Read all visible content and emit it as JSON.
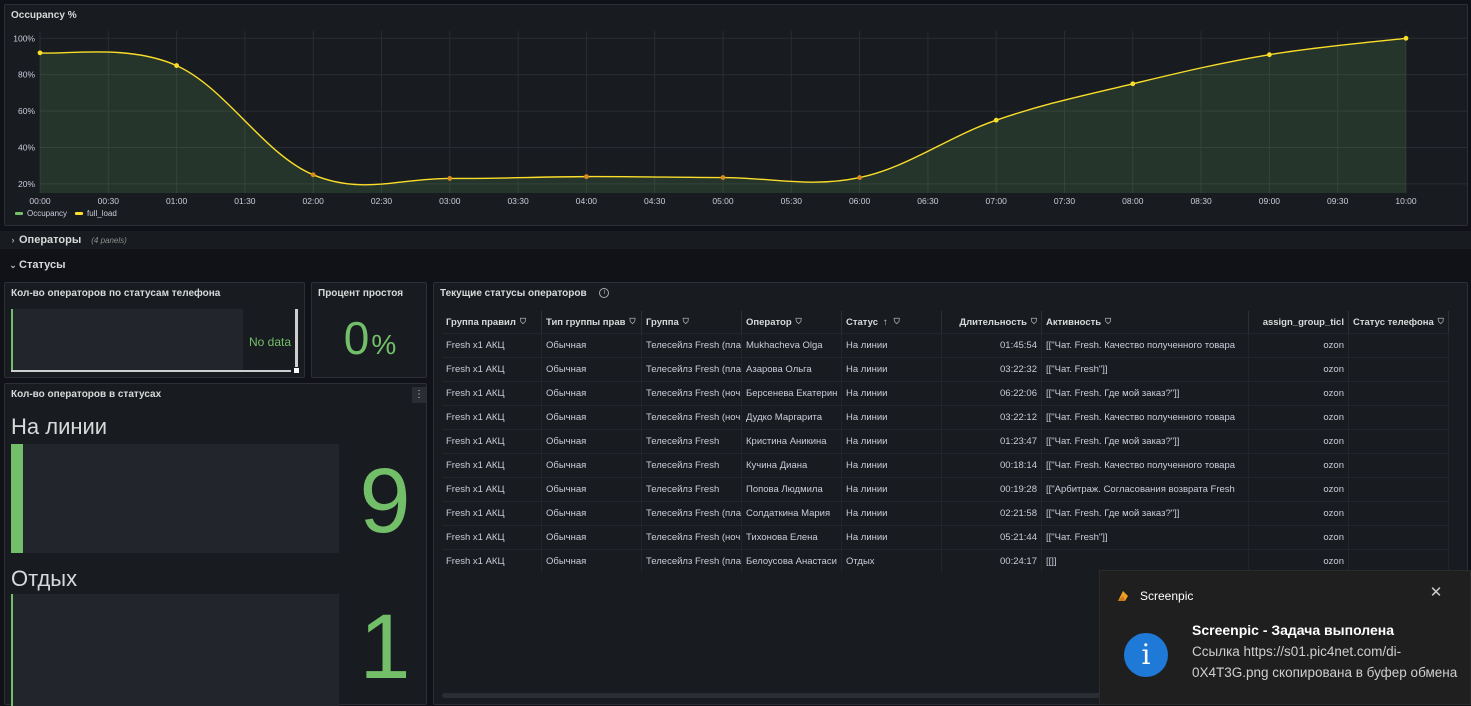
{
  "occupancy_panel": {
    "title": "Occupancy %",
    "legend": [
      {
        "name": "Occupancy",
        "color": "#73bf69"
      },
      {
        "name": "full_load",
        "color": "#fade2a"
      }
    ]
  },
  "chart_data": {
    "type": "area",
    "title": "Occupancy %",
    "x": [
      "00:00",
      "01:00",
      "02:00",
      "03:00",
      "04:00",
      "05:00",
      "06:00",
      "07:00",
      "08:00",
      "09:00",
      "10:00"
    ],
    "x_ticks": [
      "00:00",
      "00:30",
      "01:00",
      "01:30",
      "02:00",
      "02:30",
      "03:00",
      "03:30",
      "04:00",
      "04:30",
      "05:00",
      "05:30",
      "06:00",
      "06:30",
      "07:00",
      "07:30",
      "08:00",
      "08:30",
      "09:00",
      "09:30",
      "10:00"
    ],
    "y_ticks": [
      "20%",
      "40%",
      "60%",
      "80%",
      "100%"
    ],
    "ylim": [
      15,
      104
    ],
    "grid": true,
    "legend_position": "bottom-left",
    "series": [
      {
        "name": "Occupancy",
        "color": "#73bf69",
        "values": [
          92,
          85,
          25,
          23,
          24,
          23.5,
          23.5,
          55,
          75,
          91,
          100
        ]
      },
      {
        "name": "full_load",
        "color": "#fade2a",
        "values": [
          92,
          85,
          25,
          23,
          24,
          23.5,
          23.5,
          55,
          75,
          91,
          100
        ]
      }
    ]
  },
  "rows": {
    "operators": {
      "label": "Операторы",
      "sub": "(4 panels)"
    },
    "statuses": {
      "label": "Статусы"
    }
  },
  "phone_status_panel": {
    "title": "Кол-во операторов по статусам телефона",
    "no_data": "No data"
  },
  "idle_panel": {
    "title": "Процент простоя",
    "value": "0",
    "unit": "%"
  },
  "status_count_panel": {
    "title": "Кол-во операторов в статусах",
    "menu_icon": "kebab-icon",
    "items": [
      {
        "label": "На линии",
        "value": "9",
        "fill": 1.0
      },
      {
        "label": "Отдых",
        "value": "1",
        "fill": 1.0
      }
    ]
  },
  "table_panel": {
    "title": "Текущие статусы операторов",
    "info_icon": "info-icon",
    "sort_icon": "↑",
    "columns": [
      "Группа правил",
      "Тип группы прав",
      "Группа",
      "Оператор",
      "Статус",
      "Длительность",
      "Активность",
      "assign_group_ticl",
      "Статус телефона"
    ],
    "rows": [
      [
        "Fresh x1 АКЦ",
        "Обычная",
        "Телесейлз Fresh (пла",
        "Mukhacheva Olga",
        "На линии",
        "01:45:54",
        "[[\"Чат. Fresh. Качество полученного товара",
        "ozon",
        ""
      ],
      [
        "Fresh x1 АКЦ",
        "Обычная",
        "Телесейлз Fresh (пла",
        "Азарова Ольга",
        "На линии",
        "03:22:32",
        "[[\"Чат. Fresh\"]]",
        "ozon",
        ""
      ],
      [
        "Fresh x1 АКЦ",
        "Обычная",
        "Телесейлз Fresh (ноч",
        "Берсенева Екатерин",
        "На линии",
        "06:22:06",
        "[[\"Чат. Fresh. Где мой заказ?\"]]",
        "ozon",
        ""
      ],
      [
        "Fresh x1 АКЦ",
        "Обычная",
        "Телесейлз Fresh (ноч",
        "Дудко Маргарита",
        "На линии",
        "03:22:12",
        "[[\"Чат. Fresh. Качество полученного товара",
        "ozon",
        ""
      ],
      [
        "Fresh x1 АКЦ",
        "Обычная",
        "Телесейлз Fresh",
        "Кристина Аникина",
        "На линии",
        "01:23:47",
        "[[\"Чат. Fresh. Где мой заказ?\"]]",
        "ozon",
        ""
      ],
      [
        "Fresh x1 АКЦ",
        "Обычная",
        "Телесейлз Fresh",
        "Кучина Диана",
        "На линии",
        "00:18:14",
        "[[\"Чат. Fresh. Качество полученного товара",
        "ozon",
        ""
      ],
      [
        "Fresh x1 АКЦ",
        "Обычная",
        "Телесейлз Fresh",
        "Попова Людмила",
        "На линии",
        "00:19:28",
        "[[\"Арбитраж. Согласования возврата Fresh",
        "ozon",
        ""
      ],
      [
        "Fresh x1 АКЦ",
        "Обычная",
        "Телесейлз Fresh (пла",
        "Солдаткина Мария",
        "На линии",
        "02:21:58",
        "[[\"Чат. Fresh. Где мой заказ?\"]]",
        "ozon",
        ""
      ],
      [
        "Fresh x1 АКЦ",
        "Обычная",
        "Телесейлз Fresh (ноч",
        "Тихонова Елена",
        "На линии",
        "05:21:44",
        "[[\"Чат. Fresh\"]]",
        "ozon",
        ""
      ],
      [
        "Fresh x1 АКЦ",
        "Обычная",
        "Телесейлз Fresh (пла",
        "Белоусова Анастаси",
        "Отдых",
        "00:24:17",
        "[[]]",
        "ozon",
        ""
      ]
    ]
  },
  "toast": {
    "app_name": "Screenpic",
    "title": "Screenpic - Задача выполена",
    "message": "Ссылка https://s01.pic4net.com/di-0X4T3G.png скопирована в буфер обмена",
    "icon": "info-icon",
    "close_icon": "close-icon"
  }
}
